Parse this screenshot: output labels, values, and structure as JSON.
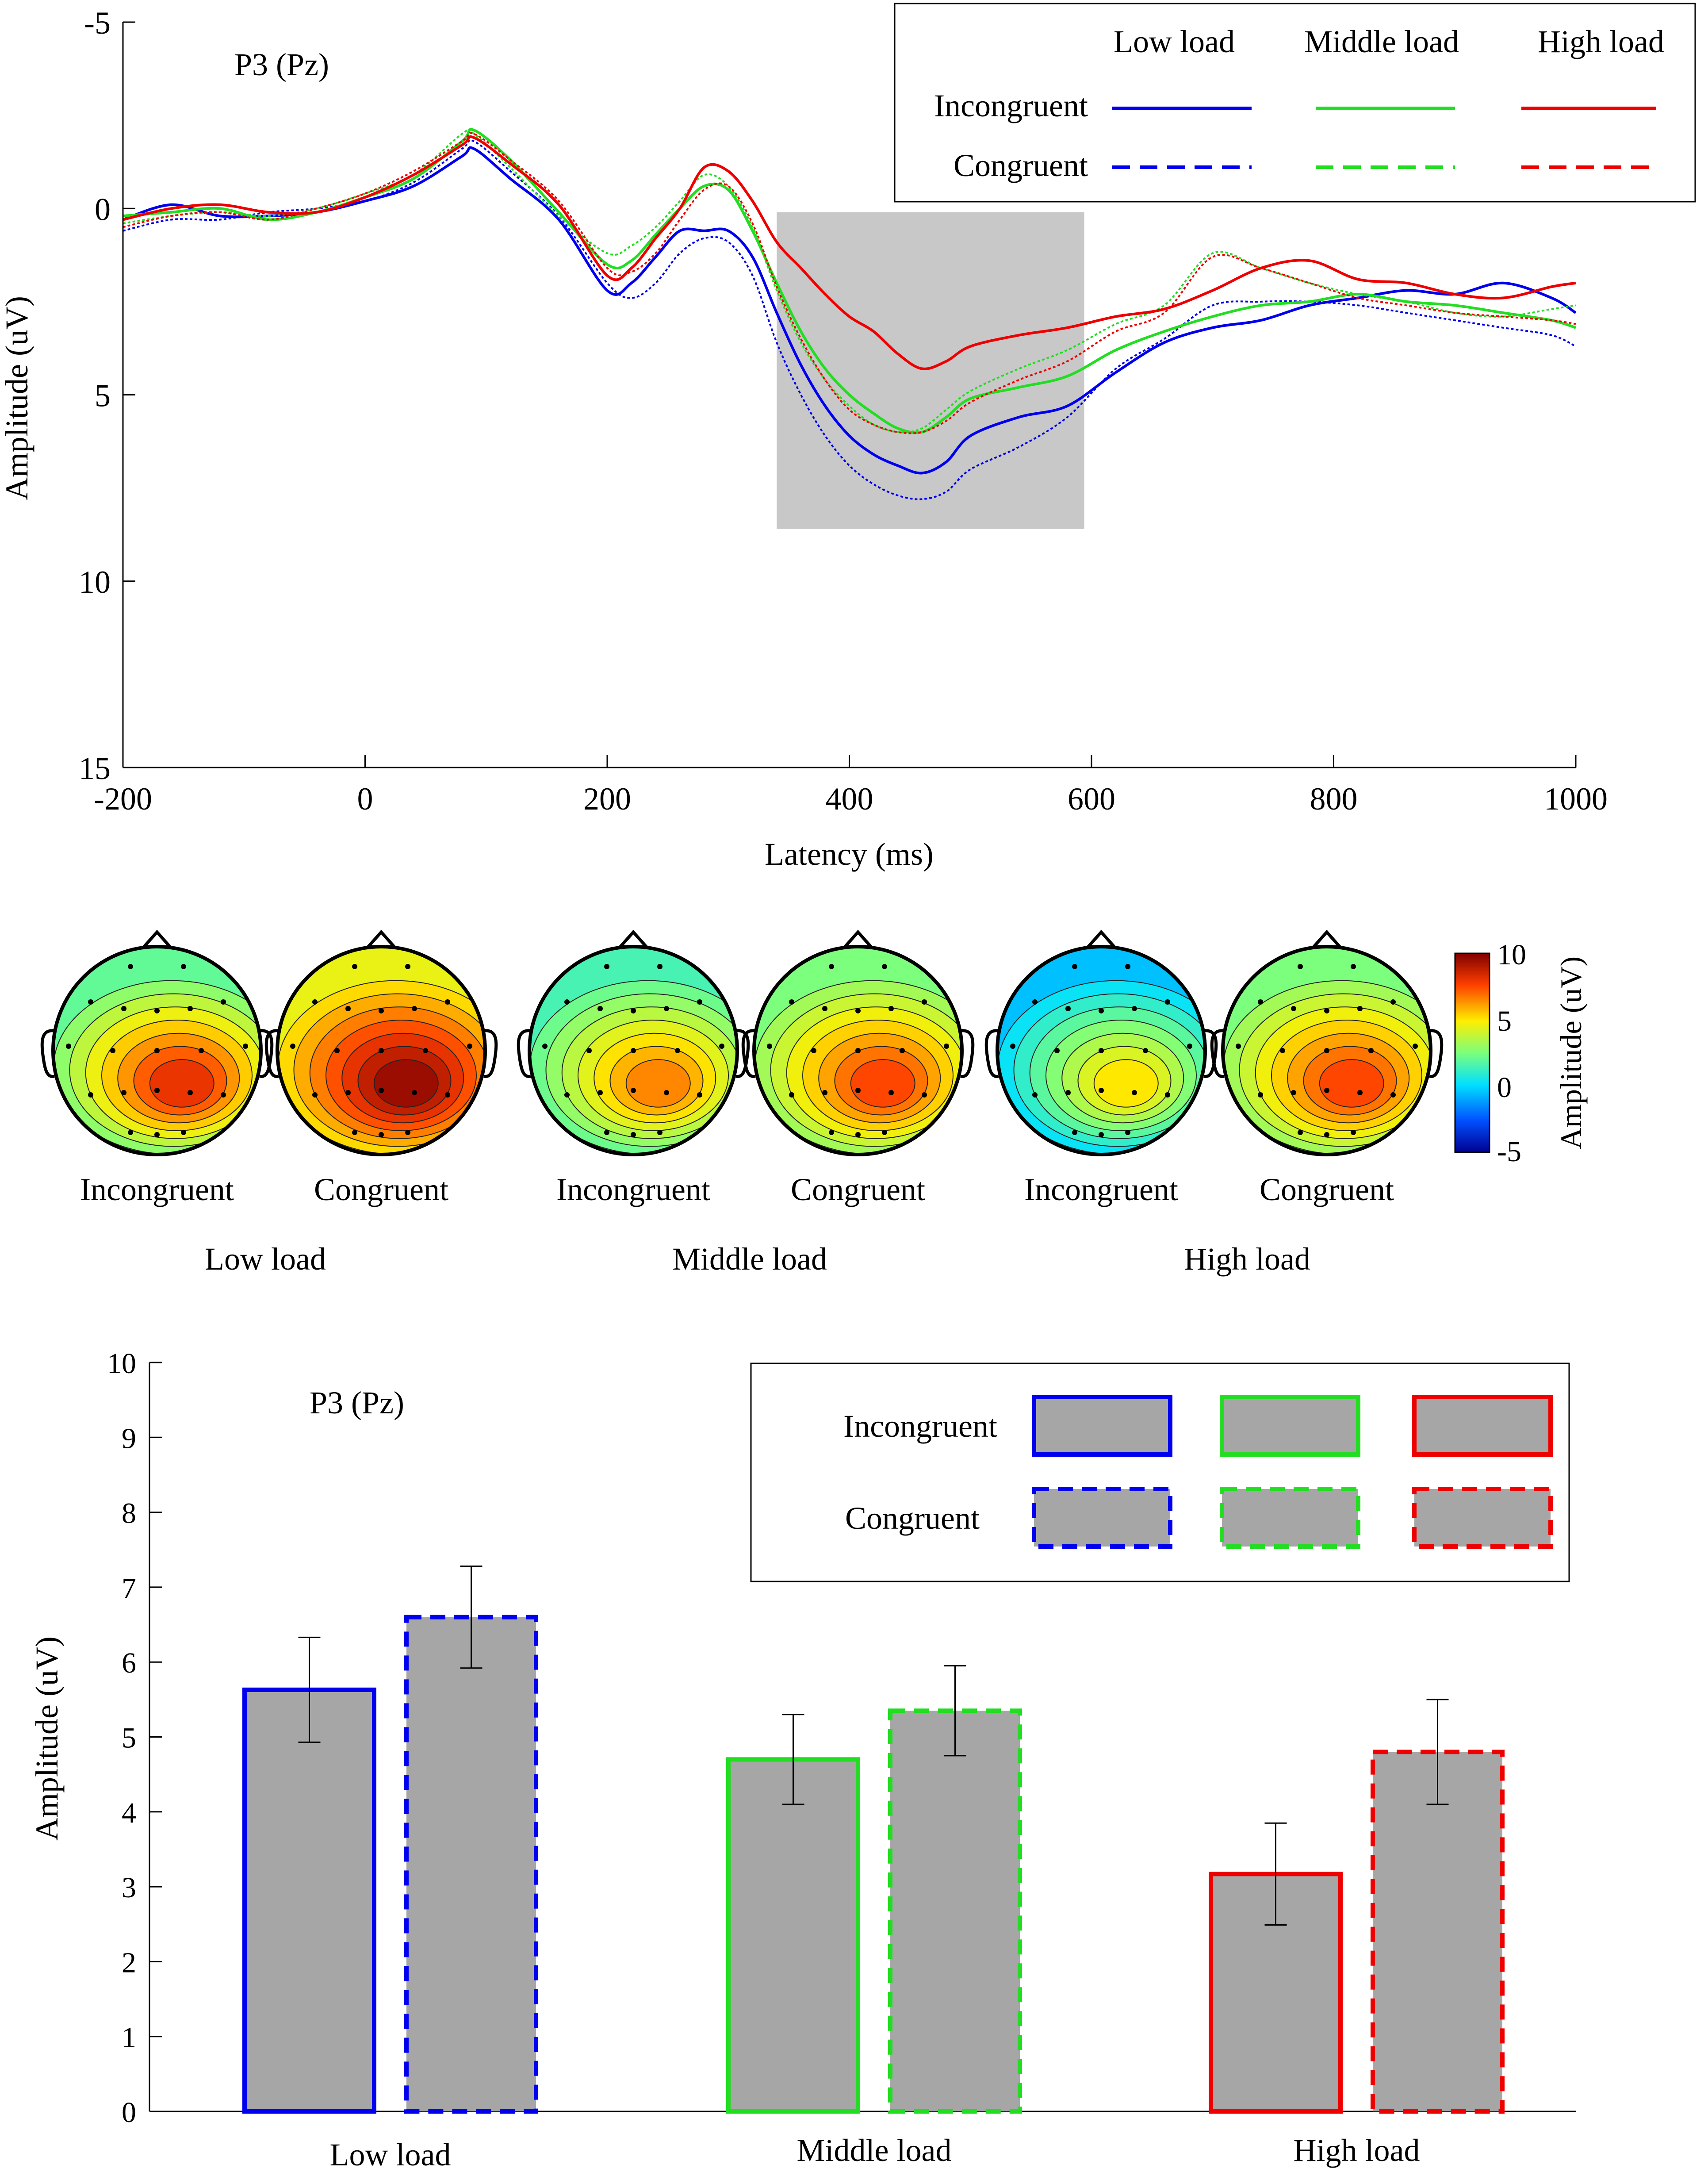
{
  "chart_data": [
    {
      "type": "line",
      "panel_label": "P3 (Pz)",
      "xlabel": "Latency (ms)",
      "ylabel": "Amplitude (uV)",
      "xlim": [
        -200,
        1000
      ],
      "ylim": [
        -5,
        15
      ],
      "y_inverted": true,
      "x_ticks": [
        "-200",
        "0",
        "200",
        "400",
        "600",
        "800",
        "1000"
      ],
      "x_tick_values": [
        -200,
        0,
        200,
        400,
        600,
        800,
        1000
      ],
      "y_ticks": [
        "-5",
        "0",
        "5",
        "10",
        "15"
      ],
      "y_tick_values": [
        -5,
        0,
        5,
        10,
        15
      ],
      "shaded_window": {
        "x": [
          340,
          594
        ],
        "y": [
          0.1,
          8.6
        ]
      },
      "legend": {
        "columns": [
          "Low load",
          "Middle load",
          "High load"
        ],
        "rows": [
          "Incongruent",
          "Congruent"
        ]
      },
      "x": [
        -200,
        -160,
        -120,
        -80,
        -40,
        0,
        40,
        80,
        90,
        120,
        160,
        200,
        220,
        240,
        260,
        280,
        300,
        320,
        340,
        360,
        380,
        400,
        420,
        440,
        460,
        480,
        500,
        540,
        580,
        620,
        660,
        700,
        740,
        780,
        820,
        860,
        900,
        940,
        980,
        1000
      ],
      "series": [
        {
          "name": "Low load Incongruent",
          "color": "#0000ee",
          "dash": false,
          "values": [
            0.3,
            -0.1,
            0.2,
            0.2,
            0.1,
            -0.2,
            -0.6,
            -1.4,
            -1.6,
            -0.8,
            0.3,
            2.2,
            2.0,
            1.3,
            0.6,
            0.6,
            0.6,
            1.3,
            2.8,
            4.2,
            5.3,
            6.1,
            6.6,
            6.9,
            7.1,
            6.8,
            6.1,
            5.6,
            5.3,
            4.4,
            3.6,
            3.2,
            3.0,
            2.6,
            2.4,
            2.2,
            2.3,
            2.0,
            2.4,
            2.8
          ]
        },
        {
          "name": "Low load Congruent",
          "color": "#0000ee",
          "dash": true,
          "values": [
            0.6,
            0.3,
            0.3,
            0.1,
            0.0,
            -0.2,
            -0.7,
            -1.6,
            -1.8,
            -1.0,
            0.2,
            2.0,
            2.4,
            2.0,
            1.2,
            0.8,
            0.9,
            1.8,
            3.6,
            5.0,
            6.1,
            6.9,
            7.4,
            7.7,
            7.8,
            7.6,
            7.0,
            6.4,
            5.6,
            4.3,
            3.5,
            2.6,
            2.5,
            2.5,
            2.6,
            2.8,
            3.0,
            3.2,
            3.4,
            3.7
          ]
        },
        {
          "name": "Middle load Incongruent",
          "color": "#22dd22",
          "dash": false,
          "values": [
            0.2,
            0.1,
            0.0,
            0.3,
            0.1,
            -0.3,
            -0.8,
            -1.8,
            -2.1,
            -1.3,
            0.1,
            1.5,
            1.4,
            0.7,
            0.0,
            -0.6,
            -0.5,
            0.6,
            2.0,
            3.3,
            4.3,
            5.0,
            5.5,
            5.9,
            6.0,
            5.6,
            5.1,
            4.8,
            4.5,
            3.8,
            3.3,
            2.9,
            2.6,
            2.5,
            2.3,
            2.5,
            2.6,
            2.8,
            3.0,
            3.2
          ]
        },
        {
          "name": "Middle load Congruent",
          "color": "#22dd22",
          "dash": true,
          "values": [
            0.4,
            0.2,
            0.1,
            0.2,
            0.0,
            -0.4,
            -0.9,
            -2.0,
            -2.0,
            -1.1,
            0.2,
            1.2,
            1.0,
            0.5,
            -0.2,
            -0.9,
            -0.6,
            0.5,
            2.2,
            3.6,
            4.6,
            5.3,
            5.8,
            6.0,
            5.9,
            5.4,
            4.9,
            4.3,
            3.8,
            3.1,
            2.6,
            1.2,
            1.6,
            2.0,
            2.3,
            2.5,
            2.8,
            2.9,
            2.7,
            2.6
          ]
        },
        {
          "name": "High load Incongruent",
          "color": "#ee0000",
          "dash": false,
          "values": [
            0.3,
            0.0,
            -0.1,
            0.1,
            0.1,
            -0.3,
            -0.9,
            -1.7,
            -1.9,
            -1.2,
            -0.1,
            1.8,
            1.6,
            0.8,
            0.0,
            -1.1,
            -1.0,
            -0.2,
            0.9,
            1.6,
            2.3,
            2.9,
            3.3,
            3.9,
            4.3,
            4.1,
            3.7,
            3.4,
            3.2,
            2.9,
            2.7,
            2.2,
            1.6,
            1.4,
            1.9,
            2.0,
            2.3,
            2.4,
            2.1,
            2.0
          ]
        },
        {
          "name": "High load Congruent",
          "color": "#ee0000",
          "dash": true,
          "values": [
            0.5,
            0.2,
            0.1,
            0.3,
            0.0,
            -0.4,
            -1.0,
            -1.8,
            -2.0,
            -1.3,
            -0.2,
            1.6,
            1.7,
            1.2,
            0.3,
            -0.5,
            -0.6,
            0.4,
            2.1,
            3.5,
            4.6,
            5.4,
            5.8,
            6.0,
            6.0,
            5.7,
            5.2,
            4.6,
            4.1,
            3.3,
            2.8,
            1.3,
            1.6,
            2.0,
            2.4,
            2.6,
            2.8,
            2.9,
            3.0,
            3.1
          ]
        }
      ]
    },
    {
      "type": "topomap",
      "colorbar": {
        "min": -5,
        "max": 10,
        "ticks": [
          "10",
          "5",
          "0",
          "-5"
        ],
        "tick_values": [
          10,
          5,
          0,
          -5
        ],
        "label": "Amplitude (uV)"
      },
      "groups": [
        {
          "label": "Low load",
          "maps": [
            {
              "label": "Incongruent",
              "peak": 8.0,
              "edge": 2.0
            },
            {
              "label": "Congruent",
              "peak": 9.5,
              "edge": 4.5
            }
          ]
        },
        {
          "label": "Middle load",
          "maps": [
            {
              "label": "Incongruent",
              "peak": 6.5,
              "edge": 1.5
            },
            {
              "label": "Congruent",
              "peak": 7.5,
              "edge": 2.5
            }
          ]
        },
        {
          "label": "High load",
          "maps": [
            {
              "label": "Incongruent",
              "peak": 5.0,
              "edge": -0.5
            },
            {
              "label": "Congruent",
              "peak": 7.5,
              "edge": 2.5
            }
          ]
        }
      ]
    },
    {
      "type": "bar",
      "panel_label": "P3 (Pz)",
      "ylabel": "Amplitude (uV)",
      "ylim": [
        0,
        10
      ],
      "y_ticks": [
        "0",
        "1",
        "2",
        "3",
        "4",
        "5",
        "6",
        "7",
        "8",
        "9",
        "10"
      ],
      "y_tick_values": [
        0,
        1,
        2,
        3,
        4,
        5,
        6,
        7,
        8,
        9,
        10
      ],
      "categories": [
        "Low load",
        "Middle load",
        "High load"
      ],
      "category_colors": [
        "#0000ee",
        "#22dd22",
        "#ee0000"
      ],
      "legend": {
        "rows": [
          "Incongruent",
          "Congruent"
        ]
      },
      "series": [
        {
          "name": "Incongruent",
          "dash": false,
          "values": [
            5.63,
            4.7,
            3.17
          ],
          "errors": [
            0.7,
            0.6,
            0.68
          ]
        },
        {
          "name": "Congruent",
          "dash": true,
          "values": [
            6.6,
            5.35,
            4.8
          ],
          "errors": [
            0.68,
            0.6,
            0.7
          ]
        }
      ]
    }
  ]
}
